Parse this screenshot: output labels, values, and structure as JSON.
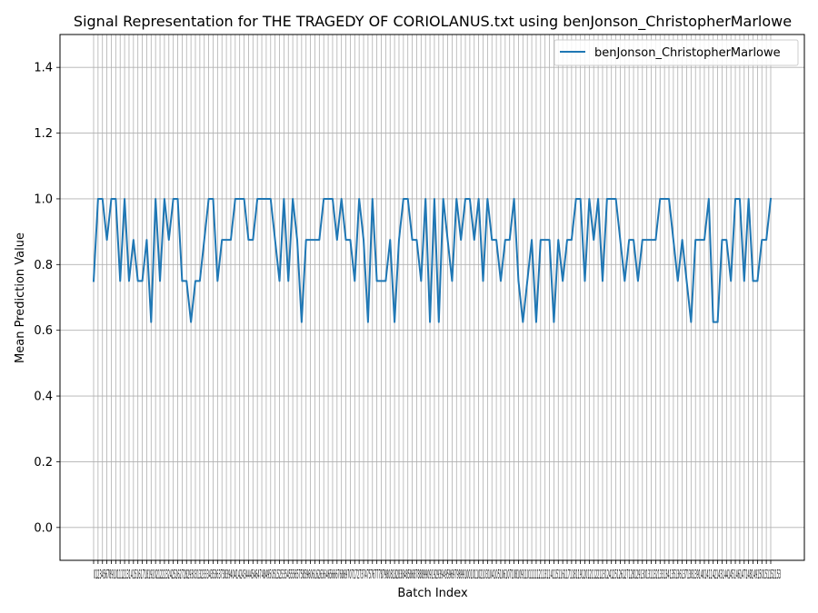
{
  "chart_data": {
    "type": "line",
    "title": "Signal Representation for THE TRAGEDY OF CORIOLANUS.txt using benJonson_ChristopherMarlowe",
    "xlabel": "Batch Index",
    "ylabel": "Mean Prediction Value",
    "ylim": [
      -0.1,
      1.5
    ],
    "y_ticks": [
      "0.0",
      "0.2",
      "0.4",
      "0.6",
      "0.8",
      "1.0",
      "1.2",
      "1.4"
    ],
    "x_ticks_visible_text": "0123456789101112131415161718192021222324252627282930313233343536373839404142434445464748495051525354555657585960616263646566676869707172737475767778798081828384858687888990919293949596979899100101102103104105106107108109110111112113114115116117118119120121122123124125126127128129130131132133134135136137138139140141142143144145146147148149150151152153",
    "grid": true,
    "legend_position": "top-right",
    "colors": {
      "line": "#1f77b4",
      "grid": "#b0b0b0"
    },
    "series": [
      {
        "name": "benJonson_ChristopherMarlowe",
        "x": [
          0,
          1,
          2,
          3,
          4,
          5,
          6,
          7,
          8,
          9,
          10,
          11,
          12,
          13,
          14,
          15,
          16,
          17,
          18,
          19,
          20,
          21,
          22,
          23,
          24,
          25,
          26,
          27,
          28,
          29,
          30,
          31,
          32,
          33,
          34,
          35,
          36,
          37,
          38,
          39,
          40,
          41,
          42,
          43,
          44,
          45,
          46,
          47,
          48,
          49,
          50,
          51,
          52,
          53,
          54,
          55,
          56,
          57,
          58,
          59,
          60,
          61,
          62,
          63,
          64,
          65,
          66,
          67,
          68,
          69,
          70,
          71,
          72,
          73,
          74,
          75,
          76,
          77,
          78,
          79,
          80,
          81,
          82,
          83,
          84,
          85,
          86,
          87,
          88,
          89,
          90,
          91,
          92,
          93,
          94,
          95,
          96,
          97,
          98,
          99,
          100,
          101,
          102,
          103,
          104,
          105,
          106,
          107,
          108,
          109,
          110,
          111,
          112,
          113,
          114,
          115,
          116,
          117,
          118,
          119,
          120,
          121,
          122,
          123,
          124,
          125,
          126,
          127,
          128,
          129,
          130,
          131,
          132,
          133,
          134,
          135,
          136,
          137,
          138,
          139,
          140,
          141,
          142,
          143,
          144,
          145,
          146,
          147,
          148,
          149,
          150,
          151,
          152,
          153
        ],
        "values": [
          0.75,
          1.0,
          1.0,
          0.875,
          1.0,
          1.0,
          0.75,
          1.0,
          0.75,
          0.875,
          0.75,
          0.75,
          0.875,
          0.625,
          1.0,
          0.75,
          1.0,
          0.875,
          1.0,
          1.0,
          0.75,
          0.75,
          0.625,
          0.75,
          0.75,
          0.875,
          1.0,
          1.0,
          0.75,
          0.875,
          0.875,
          0.875,
          1.0,
          1.0,
          1.0,
          0.875,
          0.875,
          1.0,
          1.0,
          1.0,
          1.0,
          0.875,
          0.75,
          1.0,
          0.75,
          1.0,
          0.875,
          0.625,
          0.875,
          0.875,
          0.875,
          0.875,
          1.0,
          1.0,
          1.0,
          0.875,
          1.0,
          0.875,
          0.875,
          0.75,
          1.0,
          0.875,
          0.625,
          1.0,
          0.75,
          0.75,
          0.75,
          0.875,
          0.625,
          0.875,
          1.0,
          1.0,
          0.875,
          0.875,
          0.75,
          1.0,
          0.625,
          1.0,
          0.625,
          1.0,
          0.875,
          0.75,
          1.0,
          0.875,
          1.0,
          1.0,
          0.875,
          1.0,
          0.75,
          1.0,
          0.875,
          0.875,
          0.75,
          0.875,
          0.875,
          1.0,
          0.75,
          0.625,
          0.75,
          0.875,
          0.625,
          0.875,
          0.875,
          0.875,
          0.625,
          0.875,
          0.75,
          0.875,
          0.875,
          1.0,
          1.0,
          0.75,
          1.0,
          0.875,
          1.0,
          0.75,
          1.0,
          1.0,
          1.0,
          0.875,
          0.75,
          0.875,
          0.875,
          0.75,
          0.875,
          0.875,
          0.875,
          0.875,
          1.0,
          1.0,
          1.0,
          0.875,
          0.75,
          0.875,
          0.75,
          0.625,
          0.875,
          0.875,
          0.875,
          1.0,
          0.625,
          0.625,
          0.875,
          0.875,
          0.75,
          1.0,
          1.0,
          0.75,
          1.0,
          0.75,
          0.75,
          0.875,
          0.875,
          1.0
        ]
      }
    ]
  }
}
